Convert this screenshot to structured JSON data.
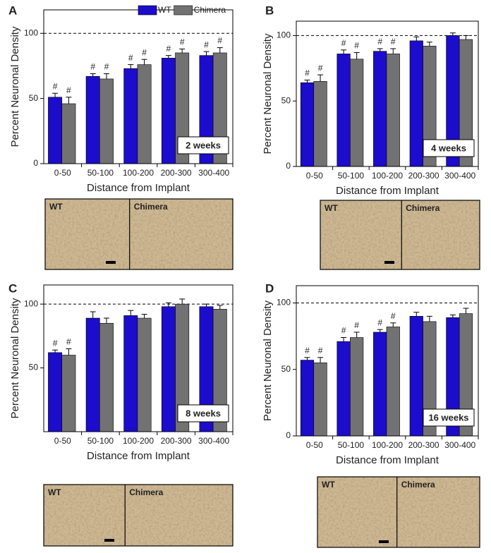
{
  "chart_data": [
    {
      "type": "bar",
      "panel": "A",
      "ylabel": "Percent Neuronal Density",
      "xlabel": "Distance from Implant",
      "annotation": "2 weeks",
      "categories": [
        "0-50",
        "50-100",
        "100-200",
        "200-300",
        "300-400"
      ],
      "series": [
        {
          "name": "WT",
          "color": "#1c0ccc",
          "values": [
            51,
            67,
            73,
            81,
            83
          ],
          "errors": [
            3,
            2,
            3,
            2,
            3
          ],
          "significant": [
            true,
            true,
            true,
            true,
            true
          ]
        },
        {
          "name": "Chimera",
          "color": "#727272",
          "values": [
            46,
            65,
            76,
            85,
            85
          ],
          "errors": [
            5,
            4,
            4,
            3,
            4
          ],
          "significant": [
            true,
            true,
            true,
            true,
            true
          ]
        }
      ],
      "ylim": [
        0,
        118
      ],
      "yticks": [
        0,
        50,
        100
      ],
      "reference_line": 100,
      "significance_mark": "#",
      "legend": true,
      "image_labels": [
        "WT",
        "Chimera"
      ]
    },
    {
      "type": "bar",
      "panel": "B",
      "ylabel": "Percent Neuronal Density",
      "xlabel": "Distance from Implant",
      "annotation": "4 weeks",
      "categories": [
        "0-50",
        "50-100",
        "100-200",
        "200-300",
        "300-400"
      ],
      "series": [
        {
          "color": "#1c0ccc",
          "values": [
            64,
            86,
            88,
            96,
            100
          ],
          "errors": [
            2,
            3,
            2,
            3,
            2
          ],
          "significant": [
            true,
            true,
            true,
            false,
            false
          ]
        },
        {
          "color": "#727272",
          "values": [
            65,
            82,
            86,
            92,
            97
          ],
          "errors": [
            5,
            5,
            4,
            3,
            3
          ],
          "significant": [
            true,
            true,
            true,
            false,
            false
          ]
        }
      ],
      "ylim": [
        0,
        111
      ],
      "yticks": [
        0,
        50,
        100
      ],
      "reference_line": 100,
      "significance_mark": "#",
      "legend": false,
      "image_labels": [
        "WT",
        "Chimera"
      ]
    },
    {
      "type": "bar",
      "panel": "C",
      "ylabel": "Percent Neuronal Density",
      "xlabel": "Distance from Implant",
      "annotation": "8 weeks",
      "categories": [
        "0-50",
        "50-100",
        "100-200",
        "200-300",
        "300-400"
      ],
      "series": [
        {
          "color": "#1c0ccc",
          "values": [
            62,
            89,
            91,
            98,
            98
          ],
          "errors": [
            2,
            5,
            4,
            3,
            2
          ],
          "significant": [
            true,
            false,
            false,
            false,
            false
          ]
        },
        {
          "color": "#727272",
          "values": [
            60,
            85,
            89,
            100,
            96
          ],
          "errors": [
            5,
            4,
            3,
            4,
            3
          ],
          "significant": [
            true,
            false,
            false,
            false,
            false
          ]
        }
      ],
      "ylim": [
        0,
        115
      ],
      "yticks": [
        50,
        100
      ],
      "reference_line": 100,
      "significance_mark": "#",
      "legend": false,
      "image_labels": [
        "WT",
        "Chimera"
      ]
    },
    {
      "type": "bar",
      "panel": "D",
      "ylabel": "Percent Neuronal Density",
      "xlabel": "Distance from Implant",
      "annotation": "16 weeks",
      "categories": [
        "0-50",
        "50-100",
        "100-200",
        "200-300",
        "300-400"
      ],
      "series": [
        {
          "color": "#1c0ccc",
          "values": [
            57,
            71,
            78,
            90,
            89
          ],
          "errors": [
            2,
            3,
            2,
            3,
            2
          ],
          "significant": [
            true,
            true,
            true,
            false,
            false
          ]
        },
        {
          "color": "#727272",
          "values": [
            55,
            74,
            82,
            86,
            92
          ],
          "errors": [
            4,
            4,
            3,
            4,
            4
          ],
          "significant": [
            true,
            true,
            true,
            false,
            false
          ]
        }
      ],
      "ylim": [
        0,
        113
      ],
      "yticks": [
        0,
        50,
        100
      ],
      "reference_line": 100,
      "significance_mark": "#",
      "legend": false,
      "image_labels": [
        "WT",
        "Chimera"
      ]
    }
  ]
}
